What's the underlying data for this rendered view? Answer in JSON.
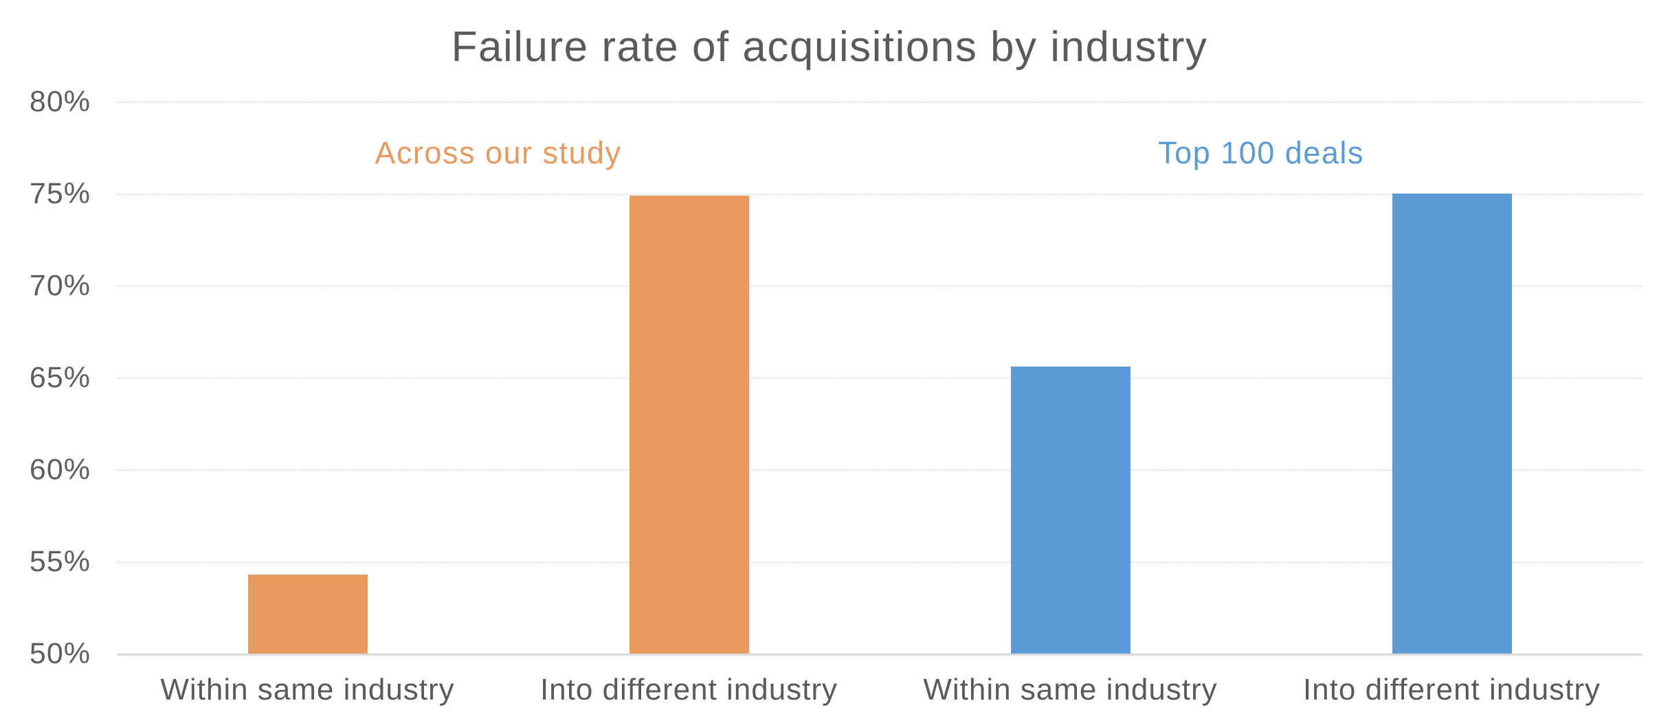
{
  "chart_data": {
    "type": "bar",
    "title": "Failure rate of acquisitions by industry",
    "xlabel": "",
    "ylabel": "",
    "ylim": [
      50,
      80
    ],
    "yticks": [
      50,
      55,
      60,
      65,
      70,
      75,
      80
    ],
    "ytick_suffix": "%",
    "grid": true,
    "gridline_style": "dotted",
    "legend_position": "inline-above-each-group",
    "colors": {
      "across_our_study": "#E8995F",
      "top_100_deals": "#5B9AD4",
      "text_gray": "#595A5C",
      "gridline": "#E2E2E2",
      "baseline": "#DBDBDB",
      "background": "#FFFFFF"
    },
    "series": [
      {
        "name": "Across our study",
        "color": "#E8995F",
        "bars": [
          {
            "category": "Within same industry",
            "value": 54.3
          },
          {
            "category": "Into different industry",
            "value": 74.9
          }
        ]
      },
      {
        "name": "Top 100 deals",
        "color": "#5B9AD4",
        "bars": [
          {
            "category": "Within same industry",
            "value": 65.6
          },
          {
            "category": "Into different industry",
            "value": 75.0
          }
        ]
      }
    ]
  }
}
